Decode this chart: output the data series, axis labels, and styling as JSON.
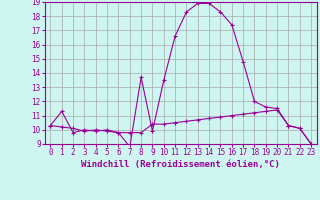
{
  "xlabel": "Windchill (Refroidissement éolien,°C)",
  "background_color": "#cef5f0",
  "line_color": "#990099",
  "xlim": [
    -0.5,
    23.5
  ],
  "ylim": [
    9,
    19
  ],
  "xticks": [
    0,
    1,
    2,
    3,
    4,
    5,
    6,
    7,
    8,
    9,
    10,
    11,
    12,
    13,
    14,
    15,
    16,
    17,
    18,
    19,
    20,
    21,
    22,
    23
  ],
  "yticks": [
    9,
    10,
    11,
    12,
    13,
    14,
    15,
    16,
    17,
    18,
    19
  ],
  "series1_x": [
    0,
    1,
    2,
    3,
    4,
    5,
    6,
    7,
    8,
    9,
    10,
    11,
    12,
    13,
    14,
    15,
    16,
    17,
    18,
    19,
    20,
    21,
    22,
    23
  ],
  "series1_y": [
    10.3,
    11.3,
    9.8,
    10.0,
    9.9,
    10.0,
    9.8,
    8.8,
    13.7,
    9.9,
    13.5,
    16.6,
    18.3,
    18.9,
    18.9,
    18.3,
    17.4,
    14.8,
    12.0,
    11.6,
    11.5,
    10.3,
    10.1,
    9.0
  ],
  "series2_x": [
    0,
    1,
    2,
    3,
    4,
    5,
    6,
    7,
    8,
    9,
    10,
    11,
    12,
    13,
    14,
    15,
    16,
    17,
    18,
    19,
    20,
    21,
    22,
    23
  ],
  "series2_y": [
    10.3,
    10.2,
    10.1,
    9.9,
    10.0,
    9.9,
    9.8,
    9.8,
    9.8,
    10.4,
    10.4,
    10.5,
    10.6,
    10.7,
    10.8,
    10.9,
    11.0,
    11.1,
    11.2,
    11.3,
    11.4,
    10.3,
    10.1,
    9.0
  ],
  "grid_color": "#aaaaaa",
  "font_color": "#990099",
  "tick_fontsize": 5.5,
  "xlabel_fontsize": 6.5
}
